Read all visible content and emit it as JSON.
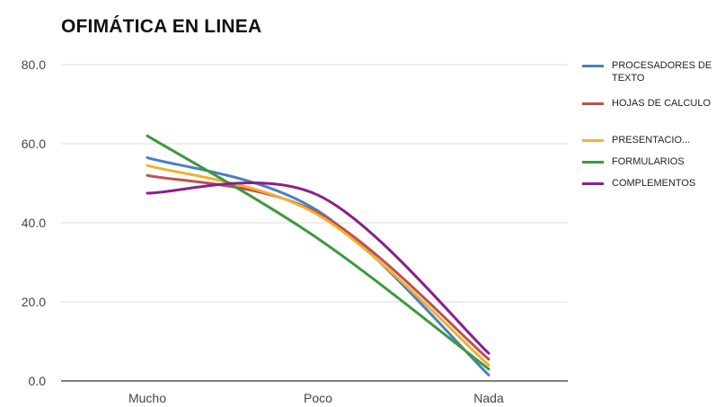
{
  "chart_data": {
    "type": "line",
    "title": "OFIMÁTICA EN LINEA",
    "categories": [
      "Mucho",
      "Poco",
      "Nada"
    ],
    "ylim": [
      0,
      80
    ],
    "yticks": [
      "0.0",
      "20.0",
      "40.0",
      "60.0",
      "80.0"
    ],
    "grid": true,
    "legend_position": "right",
    "series": [
      {
        "name": "PROCESADORES DE TEXTO",
        "color": "#4a7fc1",
        "values": [
          56.5,
          43,
          1.5
        ]
      },
      {
        "name": "HOJAS DE CALCULO",
        "color": "#c0504d",
        "values": [
          52,
          42.5,
          5.5
        ]
      },
      {
        "name": "PRESENTACIO...",
        "color": "#f2b134",
        "values": [
          54.5,
          42,
          4
        ]
      },
      {
        "name": "FORMULARIOS",
        "color": "#3a9a3a",
        "values": [
          62,
          36,
          3
        ]
      },
      {
        "name": "COMPLEMENTOS",
        "color": "#8b1f8b",
        "values": [
          47.5,
          47,
          7
        ]
      }
    ]
  }
}
